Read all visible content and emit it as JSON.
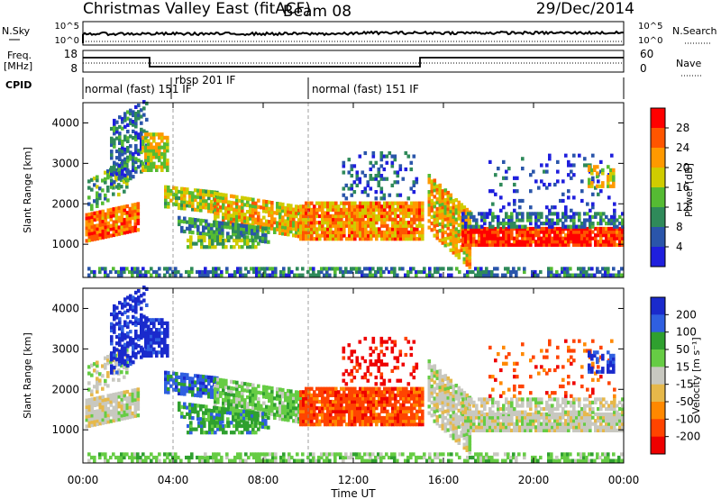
{
  "header": {
    "station": "Christmas Valley East (fitACF)",
    "beam": "Beam 08",
    "date": "29/Dec/2014"
  },
  "top_panels": {
    "nsky_label": "N.Sky",
    "nsearch_label": "N.Search",
    "noise_ticks": [
      "10^5",
      "10^0"
    ],
    "freq_label_line1": "Freq.",
    "freq_label_line2": "[MHz]",
    "freq_ticks": [
      "18",
      "8"
    ],
    "nave_label": "Nave",
    "nave_ticks": [
      "60",
      "0"
    ],
    "cpid_label": "CPID",
    "cpid_segments": [
      "normal (fast) 151 IF",
      "rbsp 201 IF",
      "normal (fast) 151 IF"
    ]
  },
  "chart_data": [
    {
      "type": "heatmap",
      "name": "power",
      "title": "",
      "xlabel": "Time UT",
      "ylabel": "Slant Range [km]",
      "xlim": [
        0,
        24
      ],
      "ylim": [
        180,
        4500
      ],
      "x_ticks": [
        "00:00",
        "04:00",
        "08:00",
        "12:00",
        "16:00",
        "20:00",
        "00:00"
      ],
      "y_ticks": [
        "1000",
        "2000",
        "3000",
        "4000"
      ],
      "colorbar": {
        "label": "Power [dB]",
        "ticks": [
          "28",
          "24",
          "20",
          "16",
          "12",
          "8",
          "4"
        ],
        "colors": [
          "#ff0000",
          "#ff5500",
          "#ff9900",
          "#d0cc00",
          "#55bb33",
          "#2f8a5a",
          "#2a55aa",
          "#1f1fdd"
        ]
      },
      "features": [
        {
          "range": "1100-1700 km",
          "times": "00:00-02:30",
          "level": "high"
        },
        {
          "range": "1000-1300 km",
          "times": "15:30-24:00",
          "level": "high"
        }
      ]
    },
    {
      "type": "heatmap",
      "name": "velocity",
      "title": "",
      "xlabel": "Time UT",
      "ylabel": "Slant Range [km]",
      "xlim": [
        0,
        24
      ],
      "ylim": [
        180,
        4500
      ],
      "x_ticks": [
        "00:00",
        "04:00",
        "08:00",
        "12:00",
        "16:00",
        "20:00",
        "00:00"
      ],
      "y_ticks": [
        "1000",
        "2000",
        "3000",
        "4000"
      ],
      "colorbar": {
        "label": "Velocity [m s⁻¹]",
        "ticks": [
          "200",
          "100",
          "50",
          "15",
          "-15",
          "-50",
          "-100",
          "-200"
        ],
        "colors": [
          "#1a2acc",
          "#2f5fe0",
          "#2fa02f",
          "#66cc44",
          "#c8c8c0",
          "#e6b84a",
          "#ff8800",
          "#ff4400",
          "#ee0000"
        ]
      }
    }
  ]
}
